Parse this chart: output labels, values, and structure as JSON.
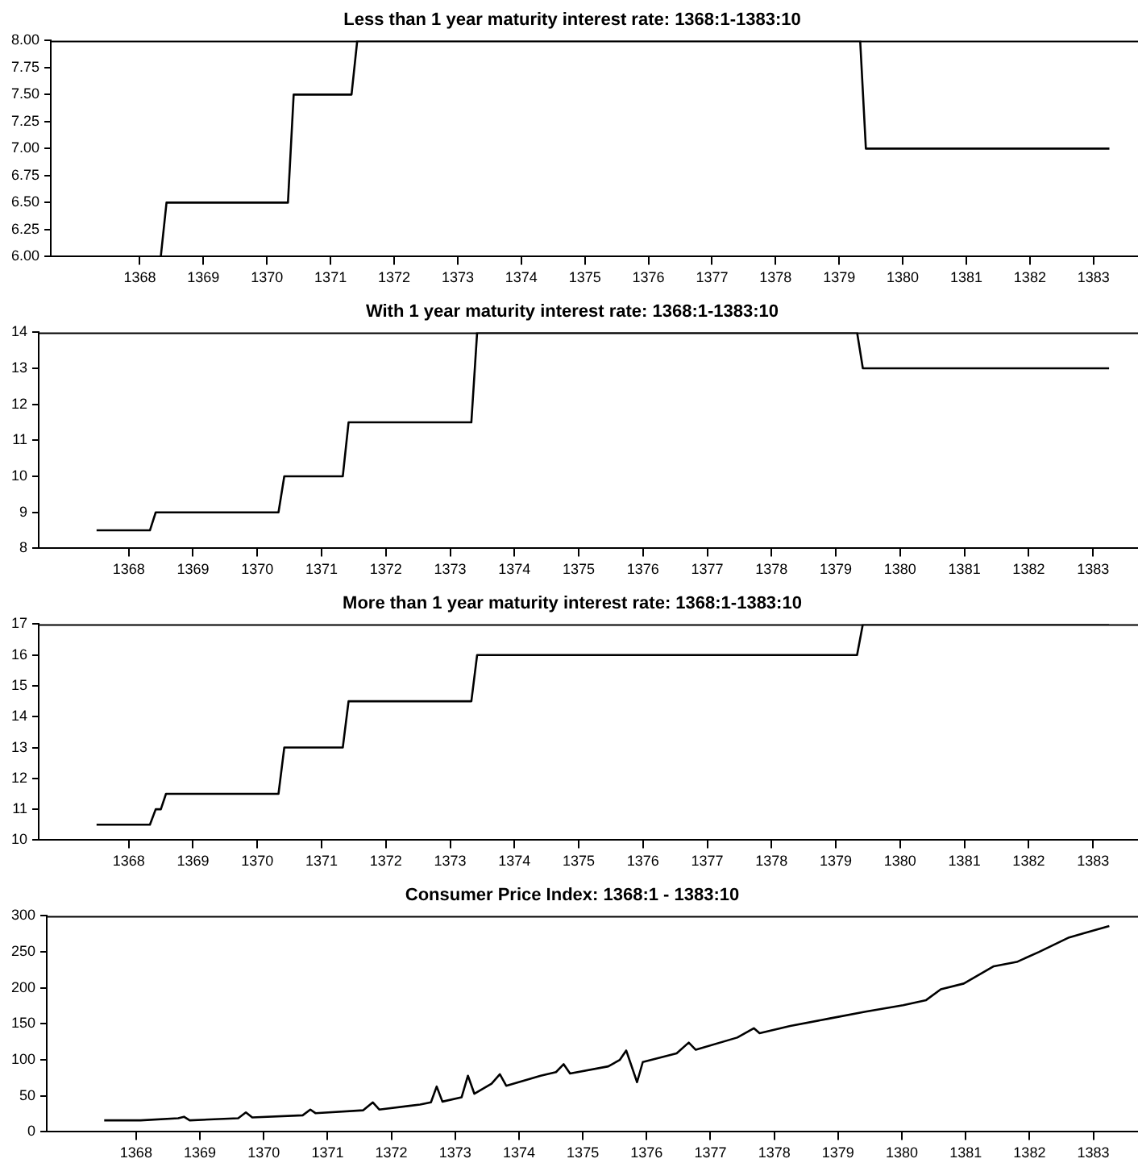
{
  "chart_data": [
    {
      "type": "line",
      "title": "Less than 1 year maturity interest rate: 1368:1-1383:10",
      "color": "#000000",
      "marker": "none",
      "line_style": "solid",
      "grid": false,
      "legend": false,
      "x": [
        1368,
        1368.83,
        1368.92,
        1370.83,
        1370.92,
        1371.83,
        1371.92,
        1379.83,
        1379.92,
        1383.75
      ],
      "values": [
        6,
        6,
        6.5,
        6.5,
        7.5,
        7.5,
        8,
        8,
        7,
        7
      ],
      "xlim": [
        1367.1,
        1384.2
      ],
      "xticks": [
        {
          "value": 1368.5,
          "label": "1368"
        },
        {
          "value": 1369.5,
          "label": "1369"
        },
        {
          "value": 1370.5,
          "label": "1370"
        },
        {
          "value": 1371.5,
          "label": "1371"
        },
        {
          "value": 1372.5,
          "label": "1372"
        },
        {
          "value": 1373.5,
          "label": "1373"
        },
        {
          "value": 1374.5,
          "label": "1374"
        },
        {
          "value": 1375.5,
          "label": "1375"
        },
        {
          "value": 1376.5,
          "label": "1376"
        },
        {
          "value": 1377.5,
          "label": "1377"
        },
        {
          "value": 1378.5,
          "label": "1378"
        },
        {
          "value": 1379.5,
          "label": "1379"
        },
        {
          "value": 1380.5,
          "label": "1380"
        },
        {
          "value": 1381.5,
          "label": "1381"
        },
        {
          "value": 1382.5,
          "label": "1382"
        },
        {
          "value": 1383.5,
          "label": "1383"
        }
      ],
      "ylim": [
        6,
        8
      ],
      "yticks": [
        {
          "value": 6,
          "label": "6.00"
        },
        {
          "value": 6.25,
          "label": "6.25"
        },
        {
          "value": 6.5,
          "label": "6.50"
        },
        {
          "value": 6.75,
          "label": "6.75"
        },
        {
          "value": 7,
          "label": "7.00"
        },
        {
          "value": 7.25,
          "label": "7.25"
        },
        {
          "value": 7.5,
          "label": "7.50"
        },
        {
          "value": 7.75,
          "label": "7.75"
        },
        {
          "value": 8,
          "label": "8.00"
        }
      ]
    },
    {
      "type": "line",
      "title": "With 1 year maturity interest rate: 1368:1-1383:10",
      "color": "#000000",
      "marker": "none",
      "line_style": "solid",
      "grid": false,
      "legend": false,
      "x": [
        1368,
        1368.83,
        1368.92,
        1370.83,
        1370.92,
        1371.83,
        1371.92,
        1373.83,
        1373.92,
        1379.83,
        1379.92,
        1383.75
      ],
      "values": [
        8.5,
        8.5,
        9,
        9,
        10,
        10,
        11.5,
        11.5,
        14,
        14,
        13,
        13
      ],
      "xlim": [
        1367.1,
        1384.2
      ],
      "xticks": [
        {
          "value": 1368.5,
          "label": "1368"
        },
        {
          "value": 1369.5,
          "label": "1369"
        },
        {
          "value": 1370.5,
          "label": "1370"
        },
        {
          "value": 1371.5,
          "label": "1371"
        },
        {
          "value": 1372.5,
          "label": "1372"
        },
        {
          "value": 1373.5,
          "label": "1373"
        },
        {
          "value": 1374.5,
          "label": "1374"
        },
        {
          "value": 1375.5,
          "label": "1375"
        },
        {
          "value": 1376.5,
          "label": "1376"
        },
        {
          "value": 1377.5,
          "label": "1377"
        },
        {
          "value": 1378.5,
          "label": "1378"
        },
        {
          "value": 1379.5,
          "label": "1379"
        },
        {
          "value": 1380.5,
          "label": "1380"
        },
        {
          "value": 1381.5,
          "label": "1381"
        },
        {
          "value": 1382.5,
          "label": "1382"
        },
        {
          "value": 1383.5,
          "label": "1383"
        }
      ],
      "ylim": [
        8,
        14
      ],
      "yticks": [
        8,
        9,
        10,
        11,
        12,
        13,
        14
      ]
    },
    {
      "type": "line",
      "title": "More than 1 year maturity interest rate: 1368:1-1383:10",
      "color": "#000000",
      "marker": "none",
      "line_style": "solid",
      "grid": false,
      "legend": false,
      "x": [
        1368,
        1368.83,
        1368.92,
        1369,
        1369.08,
        1370.83,
        1370.92,
        1371.83,
        1371.92,
        1373.83,
        1373.92,
        1379.83,
        1379.92,
        1383.75
      ],
      "values": [
        10.5,
        10.5,
        11,
        11,
        11.5,
        11.5,
        13,
        13,
        14.5,
        14.5,
        16,
        16,
        17,
        17
      ],
      "xlim": [
        1367.1,
        1384.2
      ],
      "xticks": [
        {
          "value": 1368.5,
          "label": "1368"
        },
        {
          "value": 1369.5,
          "label": "1369"
        },
        {
          "value": 1370.5,
          "label": "1370"
        },
        {
          "value": 1371.5,
          "label": "1371"
        },
        {
          "value": 1372.5,
          "label": "1372"
        },
        {
          "value": 1373.5,
          "label": "1373"
        },
        {
          "value": 1374.5,
          "label": "1374"
        },
        {
          "value": 1375.5,
          "label": "1375"
        },
        {
          "value": 1376.5,
          "label": "1376"
        },
        {
          "value": 1377.5,
          "label": "1377"
        },
        {
          "value": 1378.5,
          "label": "1378"
        },
        {
          "value": 1379.5,
          "label": "1379"
        },
        {
          "value": 1380.5,
          "label": "1380"
        },
        {
          "value": 1381.5,
          "label": "1381"
        },
        {
          "value": 1382.5,
          "label": "1382"
        },
        {
          "value": 1383.5,
          "label": "1383"
        }
      ],
      "ylim": [
        10,
        17
      ],
      "yticks": [
        10,
        11,
        12,
        13,
        14,
        15,
        16,
        17
      ]
    },
    {
      "type": "line",
      "title": "Consumer Price Index: 1368:1 - 1383:10",
      "color": "#000000",
      "marker": "none",
      "line_style": "solid",
      "grid": false,
      "legend": false,
      "x": [
        1368,
        1368.57,
        1369.16,
        1369.25,
        1369.34,
        1370.1,
        1370.22,
        1370.32,
        1371.11,
        1371.23,
        1371.31,
        1372.06,
        1372.21,
        1372.31,
        1372.95,
        1373.12,
        1373.21,
        1373.3,
        1373.6,
        1373.7,
        1373.8,
        1374.07,
        1374.2,
        1374.3,
        1374.84,
        1375.08,
        1375.2,
        1375.3,
        1375.9,
        1376.08,
        1376.18,
        1376.35,
        1376.44,
        1376.97,
        1377.16,
        1377.27,
        1377.92,
        1378.18,
        1378.27,
        1378.75,
        1379.34,
        1379.93,
        1380.52,
        1380.88,
        1381.11,
        1381.47,
        1381.94,
        1382.3,
        1382.65,
        1383.12,
        1383.36,
        1383.75
      ],
      "values": [
        16,
        16,
        19,
        21,
        16,
        19,
        27,
        20,
        23,
        31,
        26,
        30,
        41,
        31,
        38,
        41,
        63,
        42,
        48,
        78,
        53,
        67,
        80,
        64,
        78,
        83,
        94,
        81,
        91,
        100,
        113,
        69,
        97,
        109,
        124,
        114,
        131,
        144,
        137,
        147,
        157,
        167,
        176,
        183,
        198,
        206,
        230,
        236,
        250,
        270,
        276,
        286
      ],
      "xlim": [
        1367.1,
        1384.2
      ],
      "xticks": [
        {
          "value": 1368.5,
          "label": "1368"
        },
        {
          "value": 1369.5,
          "label": "1369"
        },
        {
          "value": 1370.5,
          "label": "1370"
        },
        {
          "value": 1371.5,
          "label": "1371"
        },
        {
          "value": 1372.5,
          "label": "1372"
        },
        {
          "value": 1373.5,
          "label": "1373"
        },
        {
          "value": 1374.5,
          "label": "1374"
        },
        {
          "value": 1375.5,
          "label": "1375"
        },
        {
          "value": 1376.5,
          "label": "1376"
        },
        {
          "value": 1377.5,
          "label": "1377"
        },
        {
          "value": 1378.5,
          "label": "1378"
        },
        {
          "value": 1379.5,
          "label": "1379"
        },
        {
          "value": 1380.5,
          "label": "1380"
        },
        {
          "value": 1381.5,
          "label": "1381"
        },
        {
          "value": 1382.5,
          "label": "1382"
        },
        {
          "value": 1383.5,
          "label": "1383"
        }
      ],
      "ylim": [
        0,
        300
      ],
      "yticks": [
        0,
        50,
        100,
        150,
        200,
        250,
        300
      ]
    }
  ]
}
